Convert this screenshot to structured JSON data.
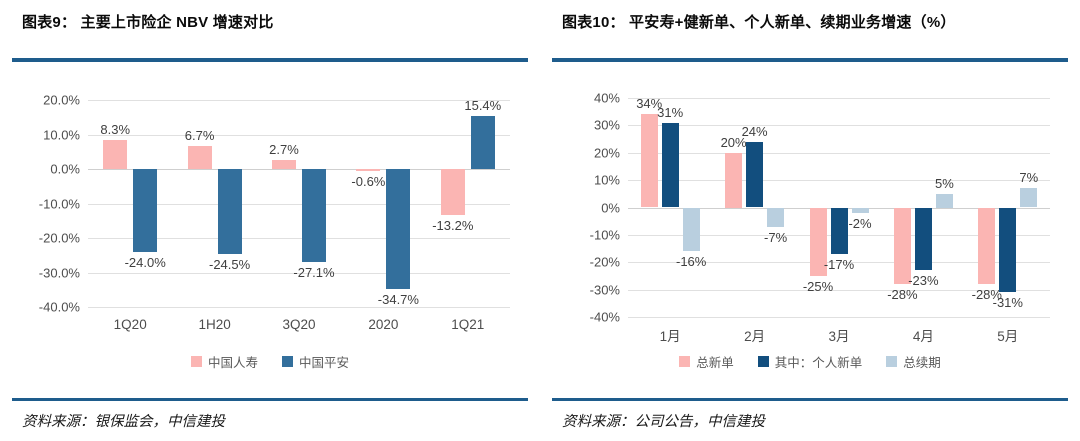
{
  "colors": {
    "rule": "#1e5c8c",
    "pink": "#fbb5b3",
    "steel_blue": "#336f9c",
    "navy": "#124e7e",
    "light_blue": "#b9cfdf"
  },
  "panels": [
    {
      "header": "图表9： 主要上市险企 NBV 增速对比",
      "source": "资料来源：银保监会，中信建投"
    },
    {
      "header": "图表10： 平安寿+健新单、个人新单、续期业务增速（%）",
      "source": "资料来源：公司公告，中信建投"
    }
  ],
  "chart_data": [
    {
      "type": "bar",
      "title": "主要上市险企 NBV 增速对比",
      "xlabel": "",
      "ylabel": "",
      "categories": [
        "1Q20",
        "1H20",
        "3Q20",
        "2020",
        "1Q21"
      ],
      "series": [
        {
          "name": "中国人寿",
          "color": "#fbb5b3",
          "values": [
            8.3,
            6.7,
            2.7,
            -0.6,
            -13.2
          ],
          "labels": [
            "8.3%",
            "6.7%",
            "2.7%",
            "-0.6%",
            "-13.2%"
          ]
        },
        {
          "name": "中国平安",
          "color": "#336f9c",
          "values": [
            -24.0,
            -24.5,
            -27.1,
            -34.7,
            15.4
          ],
          "labels": [
            "-24.0%",
            "-24.5%",
            "-27.1%",
            "-34.7%",
            "15.4%"
          ]
        }
      ],
      "ylim": [
        -40,
        20
      ],
      "ytick_labels": [
        "20.0%",
        "10.0%",
        "0.0%",
        "-10.0%",
        "-20.0%",
        "-30.0%",
        "-40.0%"
      ],
      "grid": true,
      "legend_position": "bottom"
    },
    {
      "type": "bar",
      "title": "平安寿+健新单、个人新单、续期业务增速（%）",
      "xlabel": "",
      "ylabel": "",
      "categories": [
        "1月",
        "2月",
        "3月",
        "4月",
        "5月"
      ],
      "series": [
        {
          "name": "总新单",
          "color": "#fbb5b3",
          "values": [
            34,
            20,
            -25,
            -28,
            -28
          ],
          "labels": [
            "34%",
            "20%",
            "-25%",
            "-28%",
            "-28%"
          ]
        },
        {
          "name": "其中：个人新单",
          "color": "#124e7e",
          "values": [
            31,
            24,
            -17,
            -23,
            -31
          ],
          "labels": [
            "31%",
            "24%",
            "-17%",
            "-23%",
            "-31%"
          ]
        },
        {
          "name": "总续期",
          "color": "#b9cfdf",
          "values": [
            -16,
            -7,
            -2,
            5,
            7
          ],
          "labels": [
            "-16%",
            "-7%",
            "-2%",
            "5%",
            "7%"
          ]
        }
      ],
      "ylim": [
        -40,
        40
      ],
      "ytick_labels": [
        "40%",
        "30%",
        "20%",
        "10%",
        "0%",
        "-10%",
        "-20%",
        "-30%",
        "-40%"
      ],
      "grid": true,
      "legend_position": "bottom"
    }
  ]
}
